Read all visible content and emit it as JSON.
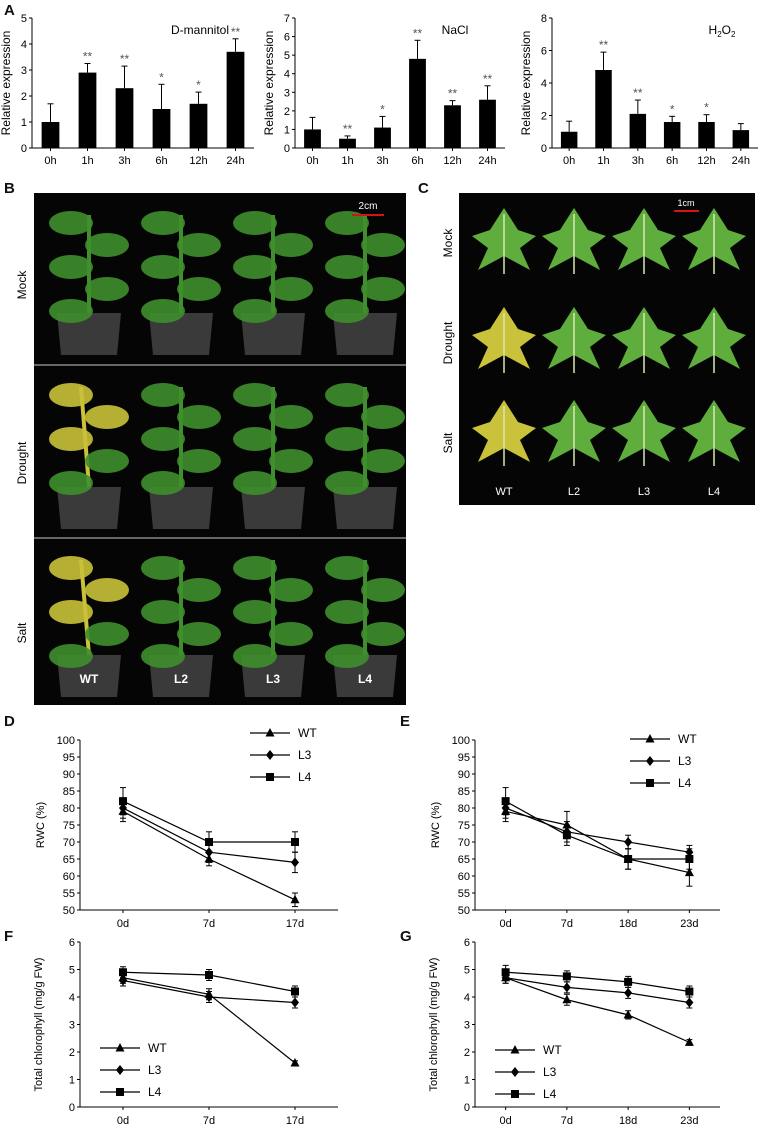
{
  "panel_letters": {
    "A": "A",
    "B": "B",
    "C": "C",
    "D": "D",
    "E": "E",
    "F": "F",
    "G": "G"
  },
  "colors": {
    "bar": "#000000",
    "plant_green": "#3f8f2e",
    "leaf_green": "#5fae3d",
    "yellow": "#c9c23a",
    "pot": "#3a3a3a",
    "background": "#050505",
    "scalebar": "#d21414"
  },
  "chart_data": [
    {
      "type": "bar",
      "panel": "A",
      "title": "D-mannitol",
      "ylabel": "Relative expression",
      "ylim": [
        0,
        5
      ],
      "yticks": [
        0,
        1,
        2,
        3,
        4,
        5
      ],
      "categories": [
        "0h",
        "1h",
        "3h",
        "6h",
        "12h",
        "24h"
      ],
      "values": [
        1.0,
        2.9,
        2.3,
        1.5,
        1.7,
        3.7
      ],
      "errors": [
        0.7,
        0.35,
        0.85,
        0.95,
        0.45,
        0.5
      ],
      "significance": [
        "",
        "**",
        "**",
        "*",
        "*",
        "**"
      ]
    },
    {
      "type": "bar",
      "panel": "A",
      "title": "NaCl",
      "ylabel": "Relative expression",
      "ylim": [
        0,
        7
      ],
      "yticks": [
        0,
        1,
        2,
        3,
        4,
        5,
        6,
        7
      ],
      "categories": [
        "0h",
        "1h",
        "3h",
        "6h",
        "12h",
        "24h"
      ],
      "values": [
        1.0,
        0.5,
        1.1,
        4.8,
        2.3,
        2.6
      ],
      "errors": [
        0.65,
        0.15,
        0.6,
        1.0,
        0.25,
        0.75
      ],
      "significance": [
        "",
        "**",
        "*",
        "**",
        "**",
        "**"
      ]
    },
    {
      "type": "bar",
      "panel": "A",
      "title_main": "H",
      "title_sub": "2",
      "title_main2": "O",
      "title_sub2": "2",
      "ylabel": "Relative expression",
      "ylim": [
        0,
        8
      ],
      "yticks": [
        0,
        2,
        4,
        6,
        8
      ],
      "categories": [
        "0h",
        "1h",
        "3h",
        "6h",
        "12h",
        "24h"
      ],
      "values": [
        1.0,
        4.8,
        2.1,
        1.6,
        1.6,
        1.1
      ],
      "errors": [
        0.65,
        1.1,
        0.85,
        0.35,
        0.45,
        0.4
      ],
      "significance": [
        "",
        "**",
        "**",
        "*",
        "*",
        ""
      ]
    },
    {
      "type": "line",
      "panel": "D",
      "ylabel": "RWC (%)",
      "ylim": [
        50,
        100
      ],
      "yticks": [
        50,
        55,
        60,
        65,
        70,
        75,
        80,
        85,
        90,
        95,
        100
      ],
      "x": [
        "0d",
        "7d",
        "17d"
      ],
      "series": [
        {
          "name": "WT",
          "marker": "triangle",
          "values": [
            79,
            65,
            53
          ],
          "errors": [
            3,
            2,
            2
          ]
        },
        {
          "name": "L3",
          "marker": "diamond",
          "values": [
            80,
            67,
            64
          ],
          "errors": [
            3,
            3,
            3
          ]
        },
        {
          "name": "L4",
          "marker": "square",
          "values": [
            82,
            70,
            70
          ],
          "errors": [
            4,
            3,
            3
          ]
        }
      ]
    },
    {
      "type": "line",
      "panel": "E",
      "ylabel": "RWC (%)",
      "ylim": [
        50,
        100
      ],
      "yticks": [
        50,
        55,
        60,
        65,
        70,
        75,
        80,
        85,
        90,
        95,
        100
      ],
      "x": [
        "0d",
        "7d",
        "18d",
        "23d"
      ],
      "series": [
        {
          "name": "WT",
          "marker": "triangle",
          "values": [
            79,
            75,
            65,
            61
          ],
          "errors": [
            3,
            4,
            3,
            4
          ]
        },
        {
          "name": "L3",
          "marker": "diamond",
          "values": [
            80,
            73,
            70,
            67
          ],
          "errors": [
            3,
            3,
            2,
            2
          ]
        },
        {
          "name": "L4",
          "marker": "square",
          "values": [
            82,
            72,
            65,
            65
          ],
          "errors": [
            4,
            3,
            3,
            3
          ]
        }
      ]
    },
    {
      "type": "line",
      "panel": "F",
      "ylabel": "Total chlorophyll (mg/g FW)",
      "ylim": [
        0,
        6
      ],
      "yticks": [
        0,
        1,
        2,
        3,
        4,
        5,
        6
      ],
      "x": [
        "0d",
        "7d",
        "17d"
      ],
      "series": [
        {
          "name": "WT",
          "marker": "triangle",
          "values": [
            4.7,
            4.1,
            1.6
          ],
          "errors": [
            0.2,
            0.2,
            0.08
          ]
        },
        {
          "name": "L3",
          "marker": "diamond",
          "values": [
            4.6,
            4.0,
            3.8
          ],
          "errors": [
            0.2,
            0.2,
            0.2
          ]
        },
        {
          "name": "L4",
          "marker": "square",
          "values": [
            4.9,
            4.8,
            4.2
          ],
          "errors": [
            0.2,
            0.2,
            0.2
          ]
        }
      ]
    },
    {
      "type": "line",
      "panel": "G",
      "ylabel": "Total chlorophyll (mg/g FW)",
      "ylim": [
        0,
        6
      ],
      "yticks": [
        0,
        1,
        2,
        3,
        4,
        5,
        6
      ],
      "x": [
        "0d",
        "7d",
        "18d",
        "23d"
      ],
      "series": [
        {
          "name": "WT",
          "marker": "triangle",
          "values": [
            4.7,
            3.9,
            3.35,
            2.35
          ],
          "errors": [
            0.2,
            0.2,
            0.15,
            0.1
          ]
        },
        {
          "name": "L3",
          "marker": "diamond",
          "values": [
            4.7,
            4.35,
            4.15,
            3.8
          ],
          "errors": [
            0.2,
            0.2,
            0.2,
            0.2
          ]
        },
        {
          "name": "L4",
          "marker": "square",
          "values": [
            4.9,
            4.75,
            4.55,
            4.2
          ],
          "errors": [
            0.25,
            0.2,
            0.2,
            0.2
          ]
        }
      ]
    }
  ],
  "photo_b": {
    "rows": [
      "Mock",
      "Drought",
      "Salt"
    ],
    "scalebar": "2cm",
    "genotypes": [
      "WT",
      "L2",
      "L3",
      "L4"
    ]
  },
  "photo_c": {
    "rows": [
      "Mock",
      "Drought",
      "Salt"
    ],
    "scalebar": "1cm",
    "genotypes": [
      "WT",
      "L2",
      "L3",
      "L4"
    ]
  }
}
